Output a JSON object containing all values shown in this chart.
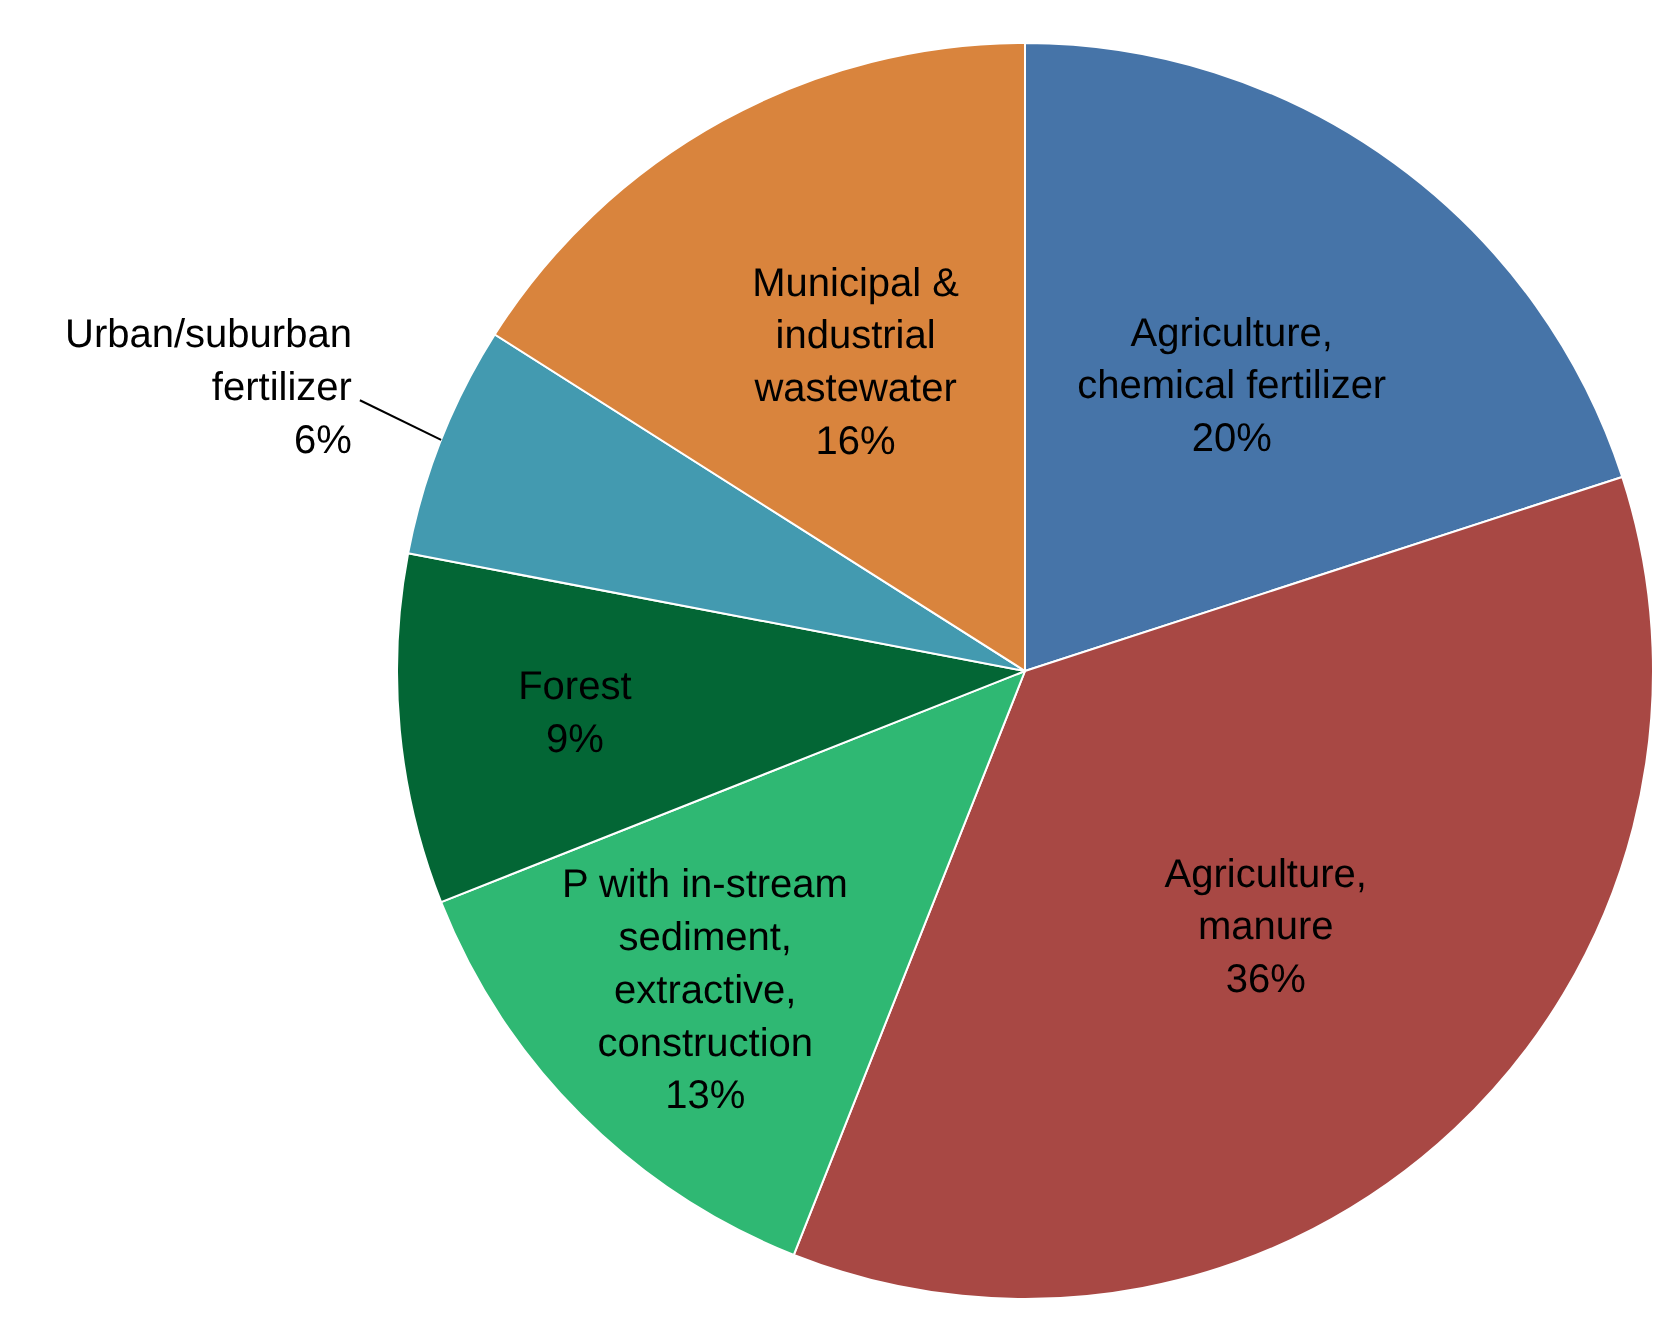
{
  "chart_data": {
    "type": "pie",
    "categories": [
      "Agriculture,\nchemical fertilizer",
      "Agriculture,\nmanure",
      "P with in-stream\nsediment,\nextractive,\nconstruction",
      "Forest",
      "Urban/suburban\nfertilizer",
      "Municipal &\nindustrial\nwastewater"
    ],
    "values": [
      20,
      36,
      13,
      9,
      6,
      16
    ],
    "value_labels": [
      "20%",
      "36%",
      "13%",
      "9%",
      "6%",
      "16%"
    ],
    "colors": [
      "#4674a8",
      "#a84844",
      "#2fb873",
      "#036635",
      "#439ab0",
      "#d9843d"
    ]
  }
}
